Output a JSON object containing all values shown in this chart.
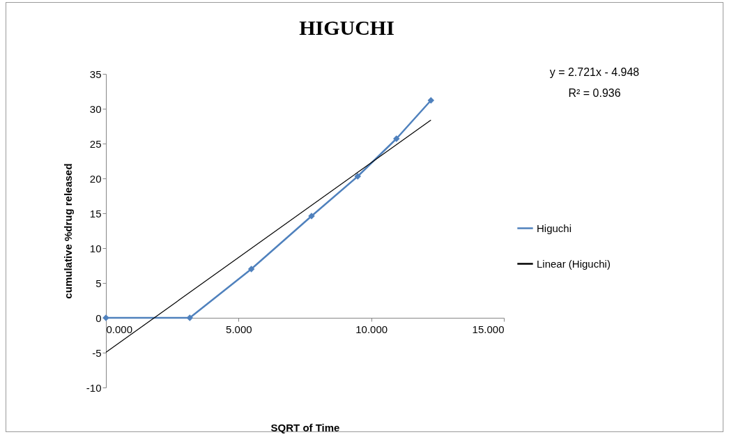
{
  "chart_data": {
    "type": "line",
    "title": "HIGUCHI",
    "xlabel": "SQRT of Time",
    "ylabel": "cumulative %drug released",
    "x": [
      0,
      3.16,
      5.48,
      7.75,
      9.49,
      10.95,
      12.25
    ],
    "series": [
      {
        "name": "Higuchi",
        "color": "#4f81bd",
        "values": [
          0,
          0,
          7.0,
          14.6,
          20.3,
          25.7,
          31.2
        ]
      },
      {
        "name": "Linear (Higuchi)",
        "type": "line",
        "color": "#000000",
        "x": [
          0,
          12.25
        ],
        "values": [
          -4.95,
          28.38
        ],
        "marker": "none"
      }
    ],
    "xlim": [
      0,
      15
    ],
    "xticks": [
      {
        "value": 0,
        "label": "0.000"
      },
      {
        "value": 5,
        "label": "5.000"
      },
      {
        "value": 10,
        "label": "10.000"
      },
      {
        "value": 15,
        "label": "15.000"
      }
    ],
    "ylim": [
      -10,
      35
    ],
    "yticks": [
      -10,
      -5,
      0,
      5,
      10,
      15,
      20,
      25,
      30,
      35
    ],
    "annotations": [
      "y = 2.721x - 4.948",
      "R² = 0.936"
    ],
    "legend": "right",
    "grid": false,
    "marker": "diamond",
    "line_style": "solid"
  }
}
